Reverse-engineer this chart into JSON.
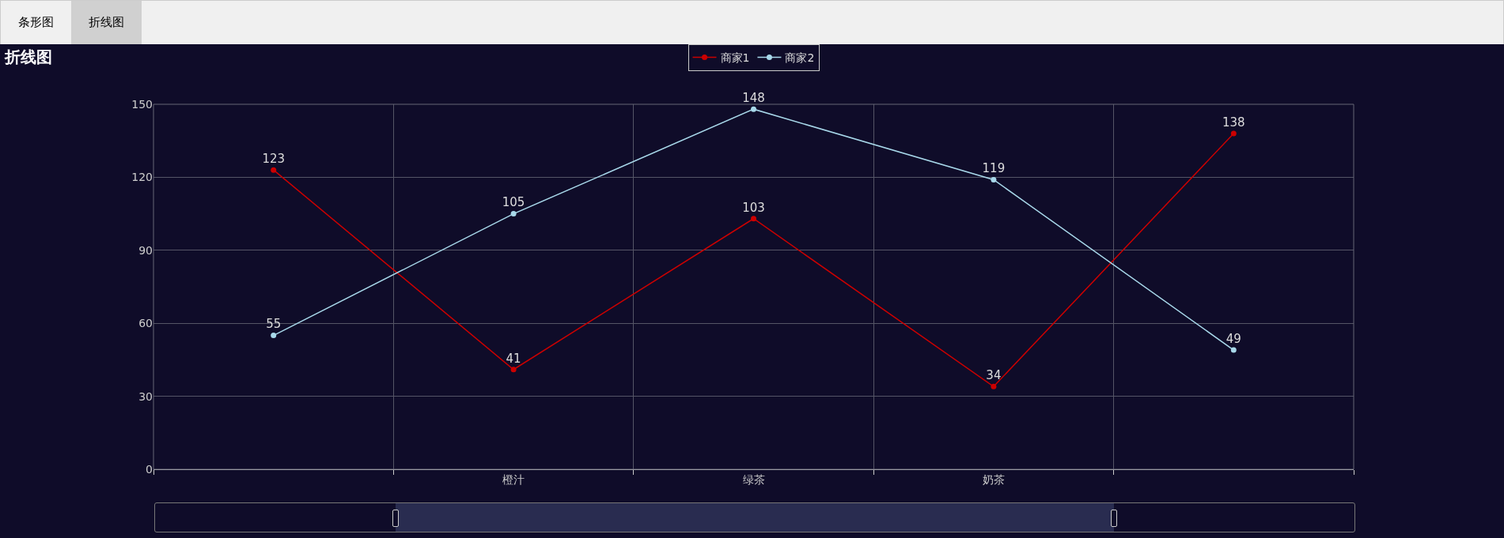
{
  "chart_data": {
    "type": "line",
    "title": "折线图",
    "annotations": [
      "条形图",
      "折线图"
    ],
    "categories": [
      null,
      "橙汁",
      "绿茶",
      "奶茶",
      null
    ],
    "series": [
      {
        "name": "商家1",
        "color": "#cc0000",
        "values": [
          123,
          41,
          103,
          34,
          138
        ]
      },
      {
        "name": "商家2",
        "color": "#a8d8ea",
        "values": [
          55,
          105,
          148,
          119,
          49
        ]
      }
    ],
    "ylim": [
      0,
      150
    ],
    "yticks": [
      0,
      30,
      60,
      90,
      120,
      150
    ],
    "grid": true,
    "legend": "top",
    "marker": "circle",
    "line_style": "solid",
    "data_labels": true
  }
}
